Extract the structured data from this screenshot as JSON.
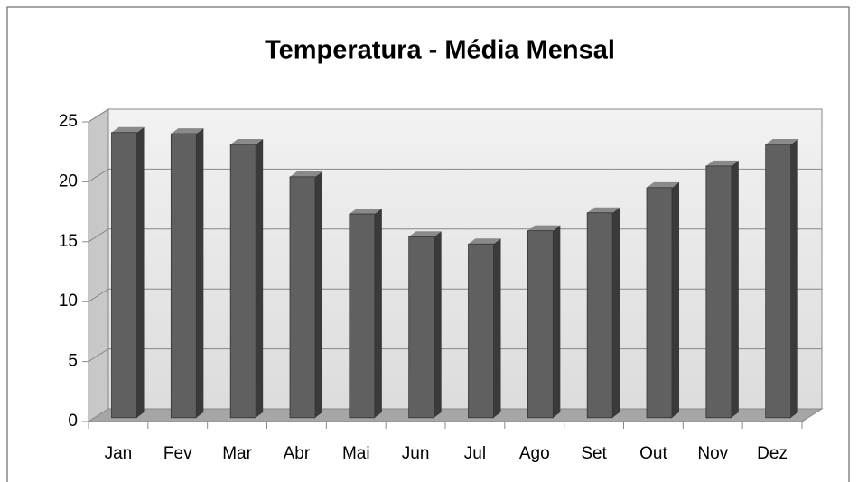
{
  "chart_data": {
    "type": "bar3d",
    "title": "Temperatura - Média Mensal",
    "categories": [
      "Jan",
      "Fev",
      "Mar",
      "Abr",
      "Mai",
      "Jun",
      "Jul",
      "Ago",
      "Set",
      "Out",
      "Nov",
      "Dez"
    ],
    "values": [
      23.8,
      23.7,
      22.8,
      20.1,
      17.0,
      15.1,
      14.5,
      15.6,
      17.1,
      19.2,
      21.0,
      22.8
    ],
    "color": "#606060",
    "ylim": [
      0,
      25
    ],
    "yticks": [
      0,
      5,
      10,
      15,
      20,
      25
    ],
    "grid": true
  }
}
